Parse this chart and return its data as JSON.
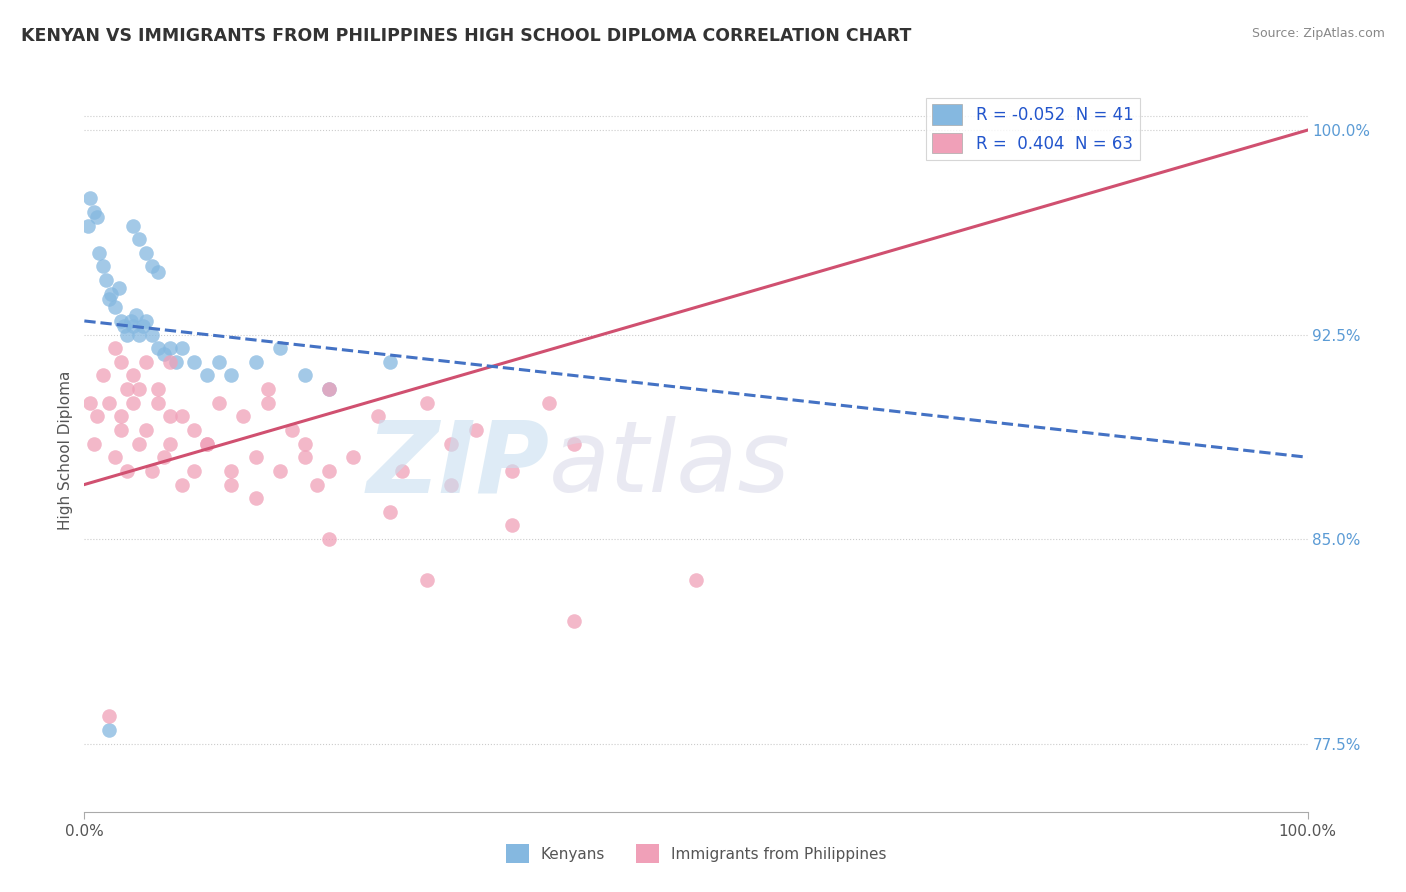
{
  "title": "KENYAN VS IMMIGRANTS FROM PHILIPPINES HIGH SCHOOL DIPLOMA CORRELATION CHART",
  "source": "Source: ZipAtlas.com",
  "ylabel": "High School Diploma",
  "right_yticks": [
    77.5,
    85.0,
    92.5,
    100.0
  ],
  "right_ytick_labels": [
    "77.5%",
    "85.0%",
    "92.5%",
    "100.0%"
  ],
  "legend_blue_label": "Kenyans",
  "legend_pink_label": "Immigrants from Philippines",
  "legend_blue_r": "R = -0.052",
  "legend_blue_n": "N = 41",
  "legend_pink_r": "R =  0.404",
  "legend_pink_n": "N = 63",
  "blue_color": "#85b8e0",
  "pink_color": "#f0a0b8",
  "blue_line_color": "#4472c4",
  "pink_line_color": "#d05070",
  "xlim": [
    0,
    100
  ],
  "ylim": [
    75.0,
    101.5
  ],
  "grid_color": "#cccccc",
  "background_color": "#ffffff",
  "title_fontsize": 12.5,
  "axis_fontsize": 11,
  "blue_scatter_x": [
    0.3,
    0.5,
    0.8,
    1.0,
    1.2,
    1.5,
    1.8,
    2.0,
    2.2,
    2.5,
    2.8,
    3.0,
    3.2,
    3.5,
    3.8,
    4.0,
    4.2,
    4.5,
    4.8,
    5.0,
    5.5,
    6.0,
    6.5,
    7.0,
    7.5,
    8.0,
    9.0,
    10.0,
    11.0,
    12.0,
    14.0,
    16.0,
    18.0,
    20.0,
    25.0,
    4.0,
    4.5,
    5.0,
    5.5,
    6.0,
    2.0
  ],
  "blue_scatter_y": [
    96.5,
    97.5,
    97.0,
    96.8,
    95.5,
    95.0,
    94.5,
    93.8,
    94.0,
    93.5,
    94.2,
    93.0,
    92.8,
    92.5,
    93.0,
    92.8,
    93.2,
    92.5,
    92.8,
    93.0,
    92.5,
    92.0,
    91.8,
    92.0,
    91.5,
    92.0,
    91.5,
    91.0,
    91.5,
    91.0,
    91.5,
    92.0,
    91.0,
    90.5,
    91.5,
    96.5,
    96.0,
    95.5,
    95.0,
    94.8,
    78.0
  ],
  "pink_scatter_x": [
    0.5,
    0.8,
    1.0,
    1.5,
    2.0,
    2.5,
    3.0,
    3.5,
    4.0,
    4.5,
    5.0,
    5.5,
    6.0,
    6.5,
    7.0,
    8.0,
    9.0,
    10.0,
    11.0,
    12.0,
    13.0,
    14.0,
    15.0,
    16.0,
    17.0,
    18.0,
    19.0,
    20.0,
    22.0,
    24.0,
    26.0,
    28.0,
    30.0,
    32.0,
    35.0,
    38.0,
    40.0,
    3.0,
    3.5,
    4.0,
    5.0,
    6.0,
    7.0,
    8.0,
    10.0,
    12.0,
    15.0,
    18.0,
    20.0,
    25.0,
    30.0,
    40.0,
    50.0,
    2.5,
    3.0,
    4.5,
    7.0,
    9.0,
    14.0,
    20.0,
    28.0,
    35.0,
    2.0
  ],
  "pink_scatter_y": [
    90.0,
    88.5,
    89.5,
    91.0,
    90.0,
    88.0,
    89.5,
    87.5,
    90.0,
    88.5,
    89.0,
    87.5,
    90.5,
    88.0,
    89.5,
    87.0,
    89.0,
    88.5,
    90.0,
    87.5,
    89.5,
    88.0,
    90.0,
    87.5,
    89.0,
    88.5,
    87.0,
    90.5,
    88.0,
    89.5,
    87.5,
    90.0,
    88.5,
    89.0,
    87.5,
    90.0,
    88.5,
    91.5,
    90.5,
    91.0,
    91.5,
    90.0,
    91.5,
    89.5,
    88.5,
    87.0,
    90.5,
    88.0,
    87.5,
    86.0,
    87.0,
    82.0,
    83.5,
    92.0,
    89.0,
    90.5,
    88.5,
    87.5,
    86.5,
    85.0,
    83.5,
    85.5,
    78.5
  ],
  "pink_trend_start_y": 87.0,
  "pink_trend_end_y": 100.0,
  "blue_trend_start_y": 93.0,
  "blue_trend_end_y": 88.0
}
